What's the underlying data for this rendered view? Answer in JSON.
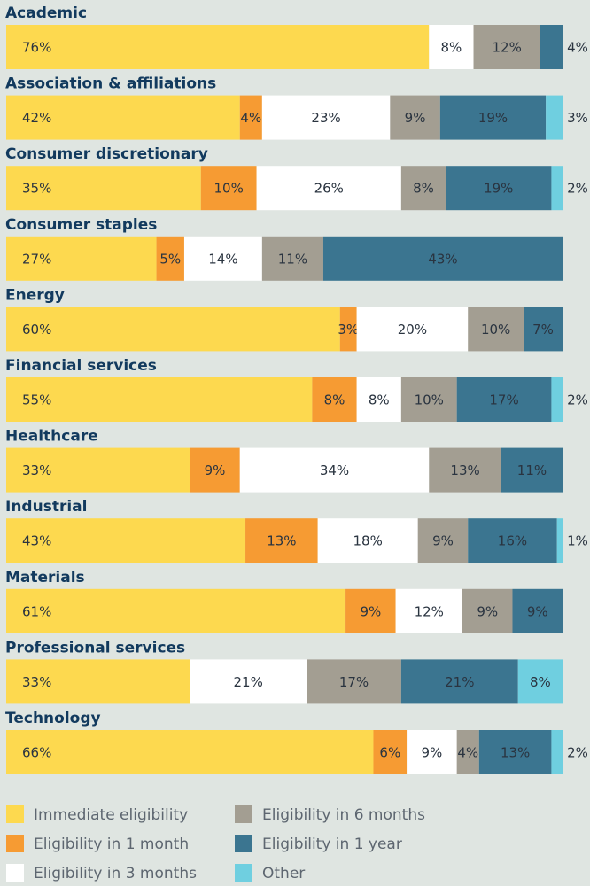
{
  "chart_data": {
    "type": "stacked_bar_horizontal",
    "categories": [
      "Academic",
      "Association & affiliations",
      "Consumer discretionary",
      "Consumer staples",
      "Energy",
      "Financial services",
      "Healthcare",
      "Industrial",
      "Materials",
      "Professional services",
      "Technology"
    ],
    "xlim": [
      0,
      100
    ],
    "series": [
      {
        "name": "Immediate eligibility",
        "color": "#fdd94f",
        "values": [
          76,
          42,
          35,
          27,
          60,
          55,
          33,
          43,
          61,
          33,
          66
        ],
        "value_labels": [
          "76%",
          "42%",
          "35%",
          "27%",
          "60%",
          "55%",
          "33%",
          "43%",
          "61%",
          "33%",
          "66%"
        ]
      },
      {
        "name": "Eligibility in 1 month",
        "color": "#f69b33",
        "values": [
          null,
          4,
          10,
          5,
          3,
          8,
          9,
          13,
          9,
          null,
          6
        ],
        "value_labels": [
          null,
          "4%",
          "10%",
          "5%",
          "3%",
          "8%",
          "9%",
          "13%",
          "9%",
          null,
          "6%"
        ]
      },
      {
        "name": "Eligibility in 3 months",
        "color": "#ffffff",
        "values": [
          8,
          23,
          26,
          14,
          20,
          8,
          34,
          18,
          12,
          21,
          9
        ],
        "value_labels": [
          "8%",
          "23%",
          "26%",
          "14%",
          "20%",
          "8%",
          "34%",
          "18%",
          "12%",
          "21%",
          "9%"
        ]
      },
      {
        "name": "Eligibility in 6 months",
        "color": "#a39e92",
        "values": [
          12,
          9,
          8,
          11,
          10,
          10,
          13,
          9,
          9,
          17,
          4
        ],
        "value_labels": [
          "12%",
          "9%",
          "8%",
          "11%",
          "10%",
          "10%",
          "13%",
          "9%",
          "9%",
          "17%",
          "4%"
        ]
      },
      {
        "name": "Eligibility in 1 year",
        "color": "#3b7590",
        "values": [
          4,
          19,
          19,
          43,
          7,
          17,
          11,
          16,
          9,
          21,
          13
        ],
        "value_labels": [
          "4%",
          "19%",
          "19%",
          "43%",
          "7%",
          "17%",
          "11%",
          "16%",
          "9%",
          "21%",
          "13%"
        ]
      },
      {
        "name": "Other",
        "color": "#6fcfe0",
        "values": [
          null,
          3,
          2,
          null,
          null,
          2,
          null,
          1,
          null,
          8,
          2
        ],
        "value_labels": [
          null,
          "3%",
          "2%",
          null,
          null,
          "2%",
          null,
          "1%",
          null,
          "8%",
          "2%"
        ]
      }
    ]
  }
}
